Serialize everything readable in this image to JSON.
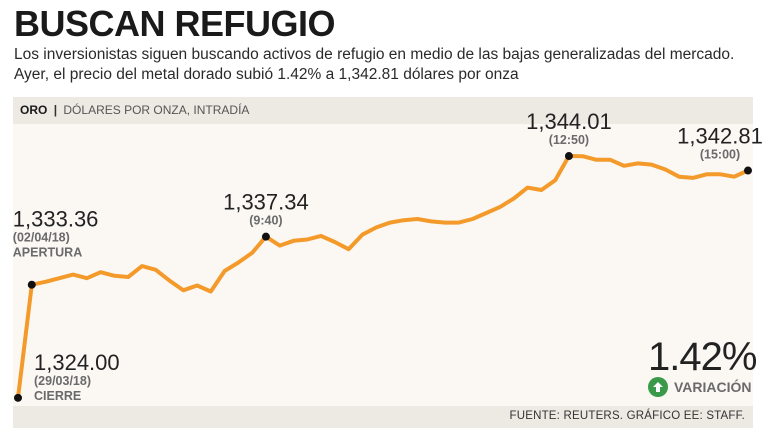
{
  "header": {
    "title": "BUSCAN REFUGIO",
    "subtitle_line1": "Los inversionistas siguen buscando activos de refugio en medio de las bajas generalizadas del mercado.",
    "subtitle_line2": "Ayer, el precio del metal dorado subió 1.42% a 1,342.81 dólares por onza"
  },
  "band": {
    "series_label": "ORO",
    "separator": "|",
    "unit_label": "DÓLARES POR ONZA, INTRADÍA"
  },
  "footer": {
    "source": "FUENTE: REUTERS. GRÁFICO EE: STAFF."
  },
  "variation": {
    "value": "1.42%",
    "label": "VARIACIÓN",
    "direction_icon": "arrow-up-icon"
  },
  "colors": {
    "line": "#f39a2b",
    "accent_up": "#3a9a4a",
    "background": "#fbf8f4",
    "band": "#ede9e3"
  },
  "chart_data": {
    "type": "line",
    "title": "ORO",
    "ylabel": "DÓLARES POR ONZA, INTRADÍA",
    "xlabel": "",
    "ylim": [
      1322,
      1346
    ],
    "values": [
      1324.0,
      1333.36,
      1333.6,
      1333.9,
      1334.2,
      1333.9,
      1334.4,
      1334.1,
      1334.0,
      1334.9,
      1334.6,
      1333.7,
      1332.9,
      1333.3,
      1332.8,
      1334.5,
      1335.2,
      1336.0,
      1337.34,
      1336.6,
      1337.0,
      1337.1,
      1337.4,
      1336.9,
      1336.3,
      1337.5,
      1338.1,
      1338.5,
      1338.7,
      1338.8,
      1338.6,
      1338.5,
      1338.5,
      1338.8,
      1339.3,
      1339.8,
      1340.5,
      1341.4,
      1341.2,
      1342.0,
      1344.01,
      1344.0,
      1343.7,
      1343.7,
      1343.2,
      1343.4,
      1343.3,
      1342.9,
      1342.3,
      1342.2,
      1342.5,
      1342.5,
      1342.3,
      1342.81
    ],
    "annotations": [
      {
        "index": 0,
        "value": "1,324.00",
        "time": "(29/03/18)",
        "note": "CIERRE"
      },
      {
        "index": 1,
        "value": "1,333.36",
        "time": "(02/04/18)",
        "note": "APERTURA"
      },
      {
        "index": 18,
        "value": "1,337.34",
        "time": "(9:40)",
        "note": ""
      },
      {
        "index": 40,
        "value": "1,344.01",
        "time": "(12:50)",
        "note": ""
      },
      {
        "index": 53,
        "value": "1,342.81",
        "time": "(15:00)",
        "note": ""
      }
    ]
  }
}
